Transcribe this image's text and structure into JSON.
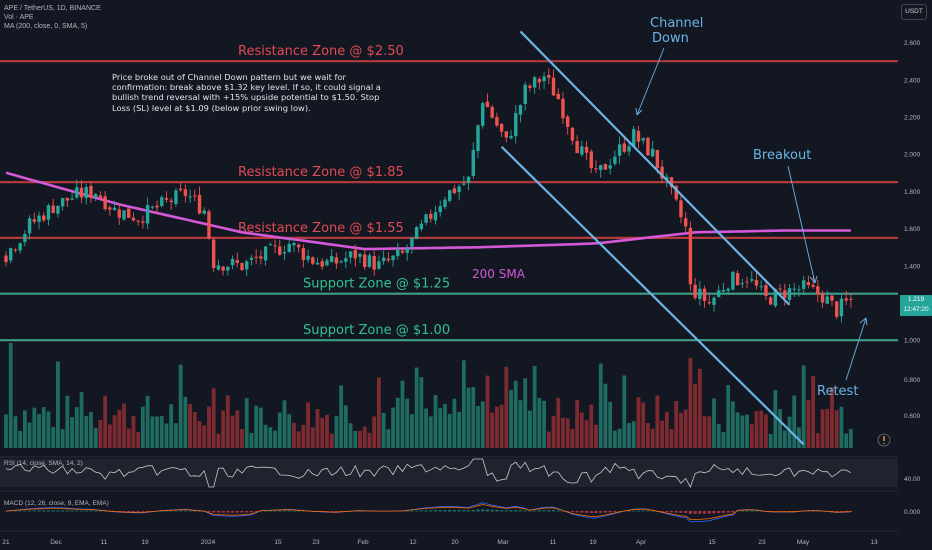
{
  "header": {
    "symbol_line": "APE / TetherUS, 1D, BINANCE",
    "vol_line": "Vol · APE",
    "ma_line": "MA (200, close, 0, SMA, 5)",
    "rsi_line": "RSI (14, close, SMA, 14, 2)",
    "macd_line": "MACD (12, 26, close, 9, EMA, EMA)",
    "currency": "USDT"
  },
  "price_badge": {
    "price": "1.219",
    "countdown": "12:47:20"
  },
  "colors": {
    "background": "#131722",
    "up": "#26a69a",
    "down": "#ef5350",
    "resistance": "#b23a3a",
    "support": "#3f9e86",
    "sma": "#d558d8",
    "channel": "#6ab5e6",
    "resistance_text": "#e04a55",
    "support_text": "#2fc28f"
  },
  "chart_data": {
    "type": "candlestick",
    "pair": "APE/USDT",
    "timeframe": "1D",
    "exchange": "BINANCE",
    "period": [
      "2023-11-21",
      "2024-05-18"
    ],
    "y_ticks": [
      "2.600",
      "2.400",
      "2.200",
      "2.000",
      "1.800",
      "1.600",
      "1.400",
      "1.200",
      "1.000"
    ],
    "ylim": [
      0.95,
      2.65
    ],
    "x_ticks": [
      "21",
      "Dec",
      "11",
      "19",
      "2024",
      "15",
      "23",
      "Feb",
      "12",
      "20",
      "Mar",
      "11",
      "19",
      "Apr",
      "15",
      "23",
      "May",
      "13"
    ],
    "price_anchors": [
      [
        "2023-11-21",
        1.46
      ],
      [
        "2023-11-26",
        1.62
      ],
      [
        "2023-12-01",
        1.72
      ],
      [
        "2023-12-06",
        1.78
      ],
      [
        "2023-12-10",
        1.8
      ],
      [
        "2023-12-14",
        1.7
      ],
      [
        "2023-12-19",
        1.66
      ],
      [
        "2023-12-25",
        1.74
      ],
      [
        "2023-12-29",
        1.79
      ],
      [
        "2024-01-02",
        1.7
      ],
      [
        "2024-01-04",
        1.42
      ],
      [
        "2024-01-10",
        1.4
      ],
      [
        "2024-01-15",
        1.46
      ],
      [
        "2024-01-20",
        1.52
      ],
      [
        "2024-01-25",
        1.43
      ],
      [
        "2024-01-29",
        1.41
      ],
      [
        "2024-02-03",
        1.46
      ],
      [
        "2024-02-08",
        1.4
      ],
      [
        "2024-02-13",
        1.46
      ],
      [
        "2024-02-17",
        1.6
      ],
      [
        "2024-02-22",
        1.78
      ],
      [
        "2024-02-27",
        1.86
      ],
      [
        "2024-03-01",
        2.3
      ],
      [
        "2024-03-06",
        2.06
      ],
      [
        "2024-03-10",
        2.34
      ],
      [
        "2024-03-14",
        2.42
      ],
      [
        "2024-03-17",
        2.3
      ],
      [
        "2024-03-21",
        2.05
      ],
      [
        "2024-03-25",
        1.88
      ],
      [
        "2024-03-29",
        2.0
      ],
      [
        "2024-04-02",
        2.1
      ],
      [
        "2024-04-06",
        2.0
      ],
      [
        "2024-04-10",
        1.78
      ],
      [
        "2024-04-13",
        1.6
      ],
      [
        "2024-04-14",
        1.28
      ],
      [
        "2024-04-18",
        1.2
      ],
      [
        "2024-04-22",
        1.32
      ],
      [
        "2024-04-26",
        1.34
      ],
      [
        "2024-04-30",
        1.22
      ],
      [
        "2024-05-04",
        1.26
      ],
      [
        "2024-05-08",
        1.28
      ],
      [
        "2024-05-12",
        1.24
      ],
      [
        "2024-05-15",
        1.16
      ],
      [
        "2024-05-18",
        1.219
      ]
    ],
    "sma200_anchors": [
      [
        "2023-11-21",
        1.9
      ],
      [
        "2023-12-15",
        1.73
      ],
      [
        "2024-01-10",
        1.58
      ],
      [
        "2024-02-05",
        1.49
      ],
      [
        "2024-03-01",
        1.5
      ],
      [
        "2024-03-25",
        1.52
      ],
      [
        "2024-04-15",
        1.58
      ],
      [
        "2024-05-05",
        1.59
      ],
      [
        "2024-05-18",
        1.59
      ]
    ],
    "levels": [
      {
        "price": 2.5,
        "kind": "resistance",
        "label": "Resistance Zone @ $2.50"
      },
      {
        "price": 1.85,
        "kind": "resistance",
        "label": "Resistance Zone @ $1.85"
      },
      {
        "price": 1.55,
        "kind": "resistance",
        "label": "Resistance Zone @ $1.55"
      },
      {
        "price": 1.25,
        "kind": "support",
        "label": "Support Zone @ $1.25"
      },
      {
        "price": 1.0,
        "kind": "support",
        "label": "Support Zone @ $1.00"
      }
    ],
    "channel": {
      "upper": [
        [
          "2024-03-09",
          2.66
        ],
        [
          "2024-05-05",
          1.19
        ]
      ],
      "lower": [
        [
          "2024-03-05",
          2.04
        ],
        [
          "2024-05-08",
          0.44
        ]
      ]
    },
    "volume_ticks": [
      "0.800",
      "0.600"
    ],
    "rsi_ticks": [
      "40.00"
    ],
    "macd_ticks": [
      "0.000"
    ],
    "annotations": {
      "channel": [
        "Channel",
        "Down"
      ],
      "breakout": "Breakout",
      "retest": "Retest",
      "sma": "200 SMA",
      "note": "Price broke out of Channel Down pattern but we wait for confirmation: break above $1.32 key level. If so, it could signal a bullish trend reversal with +15% upside potential to $1.50. Stop Loss (SL) level at $1.09 (below prior swing low)."
    }
  }
}
